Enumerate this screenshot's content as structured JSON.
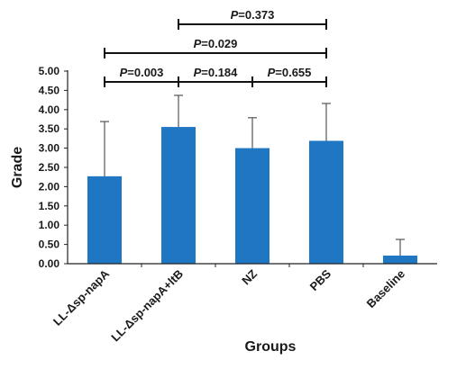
{
  "chart_data": {
    "type": "bar",
    "title": "",
    "xlabel": "Groups",
    "ylabel": "Grade",
    "ylim": [
      0,
      5
    ],
    "yticks": [
      "0.00",
      "0.50",
      "1.00",
      "1.50",
      "2.00",
      "2.50",
      "3.00",
      "3.50",
      "4.00",
      "4.50",
      "5.00"
    ],
    "categories": [
      "LL-Δsp-napA",
      "LL-Δsp-napA+ltB",
      "NZ",
      "PBS",
      "Baseline"
    ],
    "values": [
      2.27,
      3.55,
      3.0,
      3.19,
      0.21
    ],
    "error": [
      1.42,
      0.82,
      0.79,
      0.97,
      0.42
    ],
    "bar_color": "#1f77c4",
    "grid": false,
    "comparisons": [
      {
        "from": 0,
        "to": 1,
        "p_label": "P",
        "p_value": "=0.003"
      },
      {
        "from": 1,
        "to": 2,
        "p_label": "P",
        "p_value": "=0.184"
      },
      {
        "from": 2,
        "to": 3,
        "p_label": "P",
        "p_value": "=0.655"
      },
      {
        "from": 0,
        "to": 3,
        "p_label": "P",
        "p_value": "=0.029"
      },
      {
        "from": 1,
        "to": 3,
        "p_label": "P",
        "p_value": "=0.373"
      }
    ]
  }
}
